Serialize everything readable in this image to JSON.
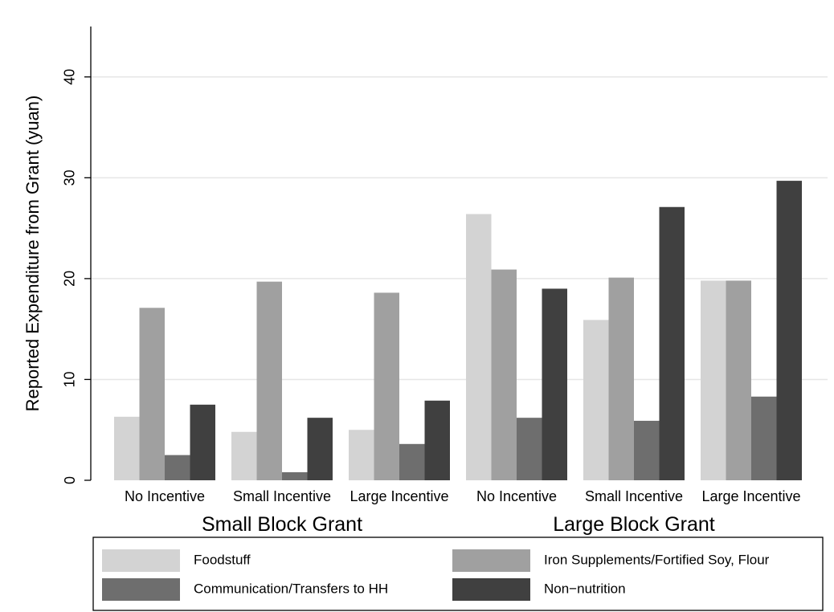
{
  "chart_data": {
    "type": "bar",
    "title": "",
    "xlabel": "",
    "ylabel": "Reported Expenditure from Grant (yuan)",
    "ylim": [
      0,
      45
    ],
    "yticks": [
      0,
      10,
      20,
      30,
      40
    ],
    "grid": true,
    "legend_position": "bottom",
    "categories": [
      "No Incentive",
      "Small Incentive",
      "Large Incentive",
      "No Incentive",
      "Small Incentive",
      "Large Incentive"
    ],
    "groups": [
      {
        "label": "Small Block Grant",
        "categories": [
          0,
          1,
          2
        ]
      },
      {
        "label": "Large Block Grant",
        "categories": [
          3,
          4,
          5
        ]
      }
    ],
    "series": [
      {
        "name": "Foodstuff",
        "color": "#d3d3d3",
        "values": [
          6.3,
          4.8,
          5.0,
          26.4,
          15.9,
          19.8
        ]
      },
      {
        "name": "Iron Supplements/Fortified Soy, Flour",
        "color": "#a0a0a0",
        "values": [
          17.1,
          19.7,
          18.6,
          20.9,
          20.1,
          19.8
        ]
      },
      {
        "name": "Communication/Transfers to HH",
        "color": "#6e6e6e",
        "values": [
          2.5,
          0.8,
          3.6,
          6.2,
          5.9,
          8.3
        ]
      },
      {
        "name": "Non−nutrition",
        "color": "#404040",
        "values": [
          7.5,
          6.2,
          7.9,
          19.0,
          27.1,
          29.7
        ]
      }
    ]
  }
}
